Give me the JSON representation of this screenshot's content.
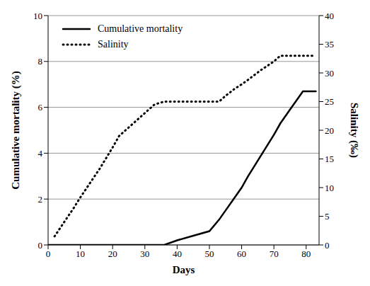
{
  "chart_data": {
    "type": "line",
    "x_label": "Days",
    "y_label": "Cumulative mortality (%)",
    "y2_label": "Salinity (‰)",
    "x": [
      0,
      2,
      5,
      8,
      10,
      13,
      16,
      20,
      22,
      25,
      28,
      30,
      33,
      36,
      40,
      45,
      50,
      53,
      55,
      58,
      60,
      62,
      66,
      70,
      72,
      75,
      79,
      83
    ],
    "series": [
      {
        "name": "Cumulative mortality",
        "color": "#000000",
        "line_style": "solid",
        "values": [
          0,
          0,
          0,
          0,
          0,
          0,
          0,
          0,
          0,
          0,
          0,
          0,
          0,
          0,
          0.2,
          0.4,
          0.6,
          1.1,
          1.5,
          2.1,
          2.5,
          3.0,
          3.9,
          4.8,
          5.3,
          5.9,
          6.7,
          6.7
        ]
      },
      {
        "name": "Salinity",
        "color": "#000000",
        "line_style": "dotted",
        "axis": "y2",
        "values": [
          null,
          1.5,
          4,
          6.5,
          8.3,
          10.8,
          13.3,
          17,
          19,
          20.5,
          22,
          23,
          24.5,
          25,
          25,
          25,
          25,
          25,
          26,
          27.3,
          28,
          28.8,
          30.5,
          32,
          33,
          33,
          33,
          33
        ]
      }
    ],
    "xlim": [
      0,
      84
    ],
    "xticks": [
      0,
      10,
      20,
      30,
      40,
      50,
      60,
      70,
      80
    ],
    "ylim": [
      0,
      10
    ],
    "yticks": [
      0,
      2,
      4,
      6,
      8,
      10
    ],
    "y2lim": [
      0,
      40
    ],
    "y2ticks": [
      0,
      5,
      10,
      15,
      20,
      25,
      30,
      35,
      40
    ],
    "grid": true,
    "legend": "upper left"
  }
}
